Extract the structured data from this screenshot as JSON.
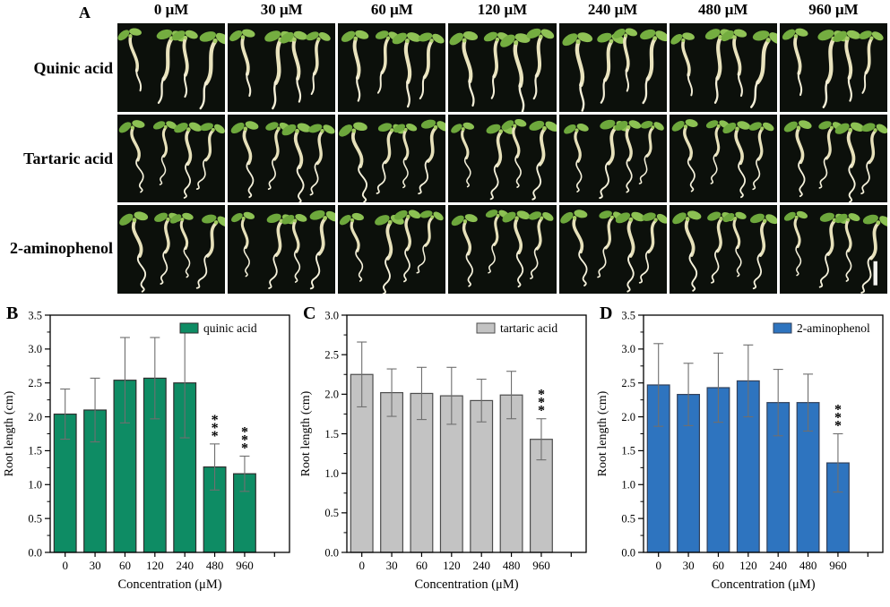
{
  "panel_a": {
    "label": "A",
    "column_headers": [
      "0 μM",
      "30 μM",
      "60 μM",
      "120 μM",
      "240 μM",
      "480 μM",
      "960 μM"
    ],
    "row_labels": [
      "Quinic acid",
      "Tartaric acid",
      "2-aminophenol"
    ],
    "scale_bar": "white-scale-bar-bottom-right"
  },
  "colors": {
    "quinic_green": "#0e8c64",
    "tartaric_gray": "#c3c3c3",
    "aminophenol_blue": "#2e74bf",
    "bar_border": "#3a3a3a",
    "error_bar": "#6f6f6f",
    "axis": "#000000",
    "photo_background": "#0c100b"
  },
  "chart_data": [
    {
      "type": "bar",
      "panel": "B",
      "legend": "quinic acid",
      "color": "#0e8c64",
      "border": "#2e2e2e",
      "categories": [
        "0",
        "30",
        "60",
        "120",
        "240",
        "480",
        "960"
      ],
      "values": [
        2.04,
        2.1,
        2.54,
        2.57,
        2.5,
        1.26,
        1.16
      ],
      "errors": [
        0.37,
        0.47,
        0.63,
        0.6,
        0.81,
        0.34,
        0.26
      ],
      "significance": [
        "",
        "",
        "",
        "",
        "",
        "***",
        "***"
      ],
      "xlabel": "Concentration (μM)",
      "ylabel": "Root length (cm)",
      "ylim": [
        0,
        3.5
      ],
      "ytick_step": 0.5,
      "xslots": 8,
      "grid": false,
      "legend_position": "top-right"
    },
    {
      "type": "bar",
      "panel": "C",
      "legend": "tartaric acid",
      "color": "#c3c3c3",
      "border": "#4d4d4d",
      "categories": [
        "0",
        "30",
        "60",
        "120",
        "240",
        "480",
        "960"
      ],
      "values": [
        2.25,
        2.02,
        2.01,
        1.98,
        1.92,
        1.99,
        1.43
      ],
      "errors": [
        0.41,
        0.3,
        0.33,
        0.36,
        0.27,
        0.3,
        0.26
      ],
      "significance": [
        "",
        "",
        "",
        "",
        "",
        "",
        "***"
      ],
      "xlabel": "Concentration (μM)",
      "ylabel": "Root length (cm)",
      "ylim": [
        0,
        3.0
      ],
      "ytick_step": 0.5,
      "xslots": 8,
      "grid": false,
      "legend_position": "top-right"
    },
    {
      "type": "bar",
      "panel": "D",
      "legend": "2-aminophenol",
      "color": "#2e74bf",
      "border": "#33415a",
      "categories": [
        "0",
        "30",
        "60",
        "120",
        "240",
        "480",
        "960"
      ],
      "values": [
        2.47,
        2.33,
        2.43,
        2.53,
        2.21,
        2.21,
        1.32
      ],
      "errors": [
        0.61,
        0.46,
        0.51,
        0.53,
        0.49,
        0.42,
        0.43
      ],
      "significance": [
        "",
        "",
        "",
        "",
        "",
        "",
        "***"
      ],
      "xlabel": "Concentration (μM)",
      "ylabel": "Root length (cm)",
      "ylim": [
        0,
        3.5
      ],
      "ytick_step": 0.5,
      "xslots": 8,
      "grid": false,
      "legend_position": "top-right"
    }
  ]
}
